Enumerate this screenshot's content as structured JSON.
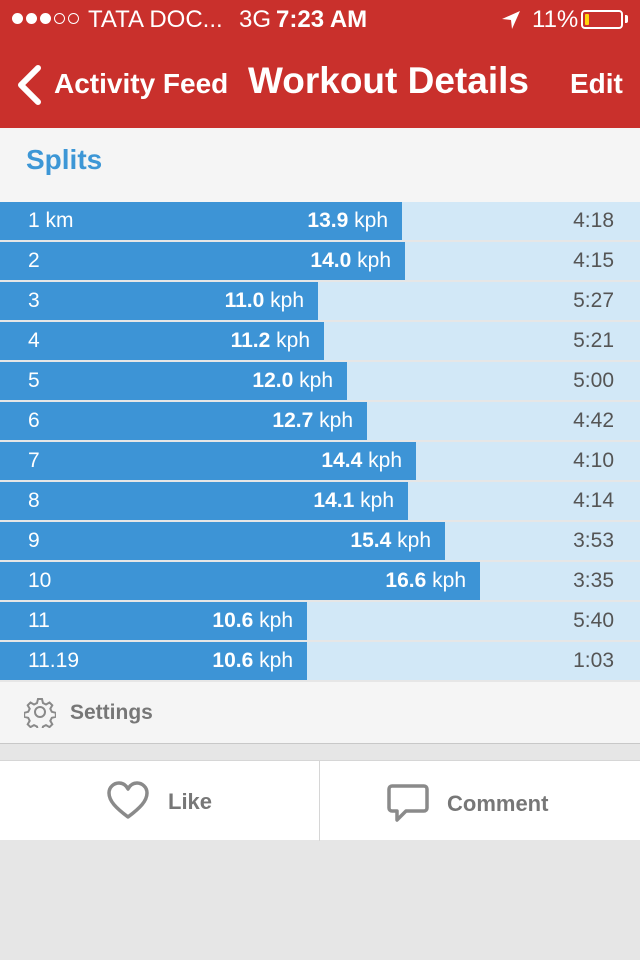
{
  "status_bar": {
    "carrier": "TATA DOC...",
    "network": "3G",
    "time": "7:23 AM",
    "battery": "11%",
    "battery_level": 0.11,
    "signal_bars_filled": 3,
    "signal_bars_total": 5
  },
  "nav": {
    "back_label": "Activity Feed",
    "title": "Workout Details",
    "edit_label": "Edit"
  },
  "splits": {
    "title": "Splits",
    "speed_unit": "kph",
    "max_speed": 16.6,
    "rows": [
      {
        "label": "1 km",
        "speed": "13.9",
        "time": "4:18"
      },
      {
        "label": "2",
        "speed": "14.0",
        "time": "4:15"
      },
      {
        "label": "3",
        "speed": "11.0",
        "time": "5:27"
      },
      {
        "label": "4",
        "speed": "11.2",
        "time": "5:21"
      },
      {
        "label": "5",
        "speed": "12.0",
        "time": "5:00"
      },
      {
        "label": "6",
        "speed": "12.7",
        "time": "4:42"
      },
      {
        "label": "7",
        "speed": "14.4",
        "time": "4:10"
      },
      {
        "label": "8",
        "speed": "14.1",
        "time": "4:14"
      },
      {
        "label": "9",
        "speed": "15.4",
        "time": "3:53"
      },
      {
        "label": "10",
        "speed": "16.6",
        "time": "3:35"
      },
      {
        "label": "11",
        "speed": "10.6",
        "time": "5:40"
      },
      {
        "label": "11.19",
        "speed": "10.6",
        "time": "1:03"
      }
    ]
  },
  "settings": {
    "label": "Settings"
  },
  "actions": {
    "like_label": "Like",
    "comment_label": "Comment"
  },
  "colors": {
    "header": "#c9302c",
    "accent": "#3d97d6",
    "bar": "#3d94d6",
    "bar_track": "#d2e8f7",
    "battery_fill": "#ffd60a"
  },
  "icons": [
    "back-chevron-icon",
    "location-arrow-icon",
    "battery-icon",
    "gear-icon",
    "heart-icon",
    "comment-icon"
  ]
}
